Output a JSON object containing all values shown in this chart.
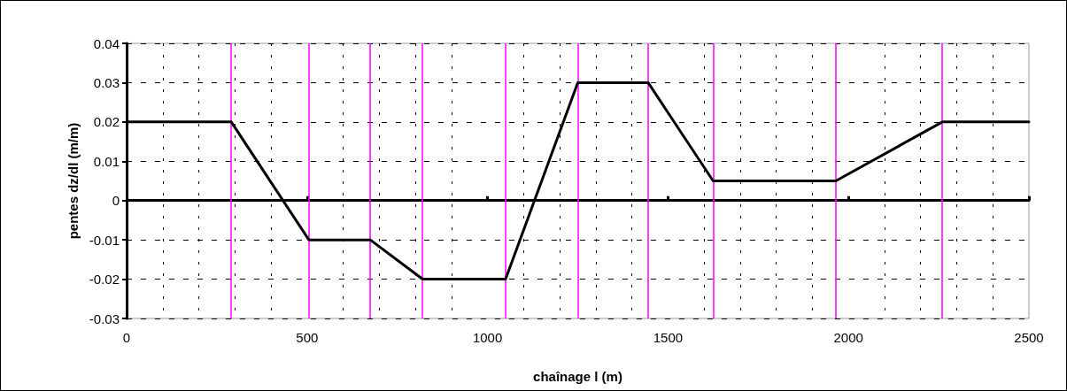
{
  "chart_data": {
    "type": "line",
    "xlabel": "chaînage l (m)",
    "ylabel": "pentes dz/dl (m/m)",
    "x": [
      0,
      290,
      505,
      675,
      820,
      1050,
      1250,
      1445,
      1625,
      1965,
      2260,
      2500
    ],
    "series": [
      {
        "color": "#000000",
        "values": [
          0.02,
          0.02,
          -0.01,
          -0.01,
          -0.02,
          -0.02,
          0.03,
          0.03,
          0.005,
          0.005,
          0.02,
          0.02
        ]
      }
    ],
    "xlim": [
      0,
      2500
    ],
    "xticks": [
      0,
      500,
      1000,
      1500,
      2000,
      2500
    ],
    "ylim": [
      -0.03,
      0.04
    ],
    "yticks": [
      -0.03,
      -0.02,
      -0.01,
      0,
      0.01,
      0.02,
      0.03,
      0.04
    ],
    "ref_lines": [
      {
        "axis": "x",
        "value": 290,
        "color": "#ff00ff"
      },
      {
        "axis": "x",
        "value": 505,
        "color": "#ff00ff"
      },
      {
        "axis": "x",
        "value": 675,
        "color": "#ff00ff"
      },
      {
        "axis": "x",
        "value": 820,
        "color": "#ff00ff"
      },
      {
        "axis": "x",
        "value": 1050,
        "color": "#ff00ff"
      },
      {
        "axis": "x",
        "value": 1250,
        "color": "#ff00ff"
      },
      {
        "axis": "x",
        "value": 1445,
        "color": "#ff00ff"
      },
      {
        "axis": "x",
        "value": 1625,
        "color": "#ff00ff"
      },
      {
        "axis": "x",
        "value": 1965,
        "color": "#ff00ff"
      },
      {
        "axis": "x",
        "value": 2260,
        "color": "#ff00ff"
      }
    ],
    "grid": true,
    "marker": "none",
    "line_style": "solid"
  }
}
